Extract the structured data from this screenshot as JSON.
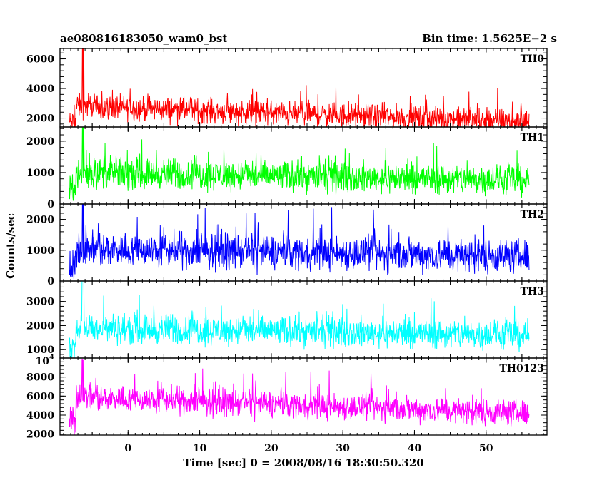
{
  "chart_data": {
    "type": "line",
    "title_left": "ae080816183050_wam0_bst",
    "title_right": "Bin time: 1.5625E−2 s",
    "xlabel": "Time [sec] 0 = 2008/08/16 18:30:50.320",
    "ylabel": "Counts/sec",
    "xlim": [
      -9.5,
      58.5
    ],
    "x_ticks": [
      0,
      10,
      20,
      30,
      40,
      50
    ],
    "x_data_range": [
      -8.2,
      56.0
    ],
    "burst_onset": -7.3,
    "grid": false,
    "series": [
      {
        "name": "TH0",
        "color": "#ff0000",
        "ylim": [
          1400,
          6700
        ],
        "y_ticks": [
          2000,
          4000,
          6000
        ],
        "tick_labels": [
          "2000",
          "4000",
          "6000"
        ],
        "pre_burst_level": 1700,
        "mean_start": 2800,
        "mean_end": 1750,
        "spread": 600,
        "peak": 6700
      },
      {
        "name": "TH1",
        "color": "#00ff00",
        "ylim": [
          0,
          2450
        ],
        "y_ticks": [
          0,
          1000,
          2000
        ],
        "tick_labels": [
          "0",
          "1000",
          "2000"
        ],
        "pre_burst_level": 450,
        "mean_start": 1000,
        "mean_end": 750,
        "spread": 350,
        "peak": 2450
      },
      {
        "name": "TH2",
        "color": "#0000ff",
        "ylim": [
          0,
          2500
        ],
        "y_ticks": [
          0,
          1000,
          2000
        ],
        "tick_labels": [
          "0",
          "1000",
          "2000"
        ],
        "pre_burst_level": 350,
        "mean_start": 1050,
        "mean_end": 800,
        "spread": 400,
        "peak": 2500
      },
      {
        "name": "TH3",
        "color": "#00ffff",
        "ylim": [
          650,
          3850
        ],
        "y_ticks": [
          1000,
          2000,
          3000
        ],
        "tick_labels": [
          "1000",
          "2000",
          "3000"
        ],
        "pre_burst_level": 1100,
        "mean_start": 1900,
        "mean_end": 1600,
        "spread": 450,
        "peak": 3850
      },
      {
        "name": "TH0123",
        "color": "#ff00ff",
        "ylim": [
          1900,
          10000
        ],
        "y_ticks": [
          2000,
          4000,
          6000,
          8000,
          10000
        ],
        "tick_labels": [
          "2000",
          "4000",
          "6000",
          "8000",
          "10"
        ],
        "tick_superscripts": [
          "",
          "",
          "",
          "",
          "4"
        ],
        "pre_burst_level": 3300,
        "mean_start": 5900,
        "mean_end": 4200,
        "spread": 1000,
        "peak": 9800
      }
    ]
  }
}
